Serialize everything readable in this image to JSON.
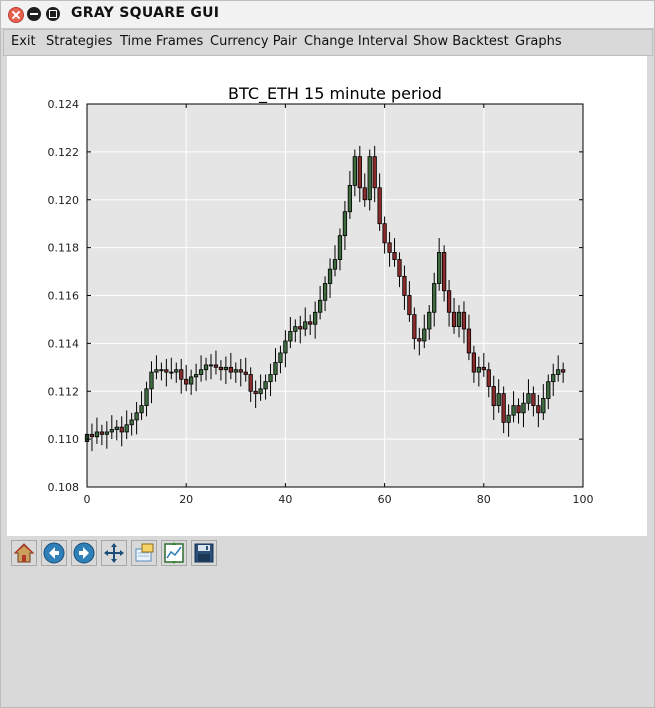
{
  "window": {
    "title": "GRAY SQUARE GUI"
  },
  "menu": {
    "items": [
      "Exit",
      "Strategies",
      "Time Frames",
      "Currency Pair",
      "Change Interval",
      "Show Backtest",
      "Graphs"
    ]
  },
  "toolbar": {
    "buttons": [
      "home-icon",
      "back-arrow-icon",
      "forward-arrow-icon",
      "pan-icon",
      "zoom-rect-icon",
      "subplot-config-icon",
      "save-icon"
    ]
  },
  "colors": {
    "up_candle": "#3d6b3d",
    "down_candle": "#8b2a2a",
    "plot_bg": "#e5e5e5",
    "grid": "#ffffff"
  },
  "chart_data": {
    "type": "candlestick",
    "title": "BTC_ETH 15 minute period",
    "xlim": [
      0,
      100
    ],
    "ylim": [
      0.108,
      0.124
    ],
    "xticks": [
      "0",
      "20",
      "40",
      "60",
      "80",
      "100"
    ],
    "yticks": [
      "0.108",
      "0.110",
      "0.112",
      "0.114",
      "0.116",
      "0.118",
      "0.120",
      "0.122",
      "0.124"
    ],
    "grid": true,
    "close": [
      0.1102,
      0.1101,
      0.1103,
      0.1102,
      0.1103,
      0.1104,
      0.1105,
      0.1103,
      0.1106,
      0.1108,
      0.1111,
      0.1114,
      0.1121,
      0.1128,
      0.1129,
      0.1129,
      0.1128,
      0.1128,
      0.1129,
      0.1125,
      0.1123,
      0.1126,
      0.1127,
      0.1129,
      0.1131,
      0.1131,
      0.113,
      0.1129,
      0.113,
      0.1128,
      0.1129,
      0.1128,
      0.1127,
      0.112,
      0.1119,
      0.1121,
      0.1124,
      0.1127,
      0.1132,
      0.1136,
      0.1141,
      0.1145,
      0.1147,
      0.1146,
      0.1149,
      0.1148,
      0.1153,
      0.1158,
      0.1165,
      0.1171,
      0.1175,
      0.1185,
      0.1195,
      0.1206,
      0.1218,
      0.1205,
      0.12,
      0.1218,
      0.1205,
      0.119,
      0.1182,
      0.1178,
      0.1175,
      0.1168,
      0.116,
      0.1152,
      0.1142,
      0.1141,
      0.1146,
      0.1153,
      0.1165,
      0.1178,
      0.1162,
      0.1153,
      0.1147,
      0.1153,
      0.1146,
      0.1136,
      0.1128,
      0.113,
      0.1129,
      0.1122,
      0.1114,
      0.1119,
      0.1107,
      0.111,
      0.1114,
      0.1111,
      0.1115,
      0.1119,
      0.1114,
      0.1111,
      0.1117,
      0.1124,
      0.1127,
      0.1129,
      0.1128
    ]
  }
}
